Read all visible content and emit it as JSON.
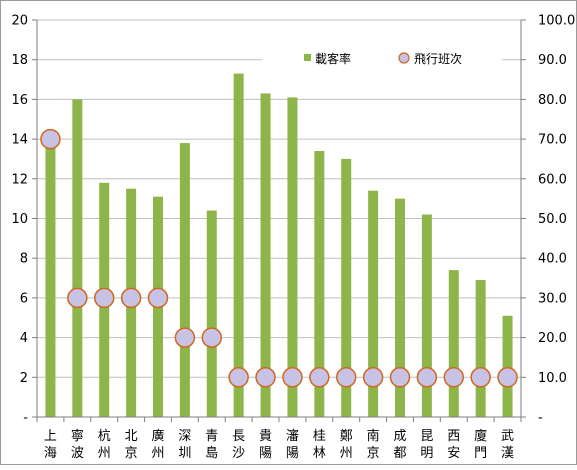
{
  "chart_data": {
    "type": "bar",
    "categories": [
      [
        "上",
        "海"
      ],
      [
        "寧",
        "波"
      ],
      [
        "杭",
        "州"
      ],
      [
        "北",
        "京"
      ],
      [
        "廣",
        "州"
      ],
      [
        "深",
        "圳"
      ],
      [
        "青",
        "島"
      ],
      [
        "長",
        "沙"
      ],
      [
        "貴",
        "陽"
      ],
      [
        "瀋",
        "陽"
      ],
      [
        "桂",
        "林"
      ],
      [
        "鄭",
        "州"
      ],
      [
        "南",
        "京"
      ],
      [
        "成",
        "都"
      ],
      [
        "昆",
        "明"
      ],
      [
        "西",
        "安"
      ],
      [
        "廈",
        "門"
      ],
      [
        "武",
        "漢"
      ]
    ],
    "series": [
      {
        "name": "載客率",
        "type": "bar",
        "axis": "left",
        "color": "#8db54a",
        "values": [
          13.8,
          16.0,
          11.8,
          11.5,
          11.1,
          13.8,
          10.4,
          17.3,
          16.3,
          16.1,
          13.4,
          13.0,
          11.4,
          11.0,
          10.2,
          7.4,
          6.9,
          5.1
        ]
      },
      {
        "name": "飛行班次",
        "type": "marker",
        "axis": "right",
        "color": "#c8c2e4",
        "edge_color": "#d0661f",
        "values": [
          70,
          30,
          30,
          30,
          30,
          20,
          20,
          10,
          10,
          10,
          10,
          10,
          10,
          10,
          10,
          10,
          10,
          10
        ]
      }
    ],
    "y_left": {
      "ylim": [
        0,
        20
      ],
      "ticks": [
        "-",
        "2",
        "4",
        "6",
        "8",
        "10",
        "12",
        "14",
        "16",
        "18",
        "20"
      ]
    },
    "y_right": {
      "ylim": [
        0,
        100
      ],
      "ticks": [
        "-",
        "10.0",
        "20.0",
        "30.0",
        "40.0",
        "50.0",
        "60.0",
        "70.0",
        "80.0",
        "90.0",
        "100.0"
      ]
    },
    "grid": "horizontal",
    "legend_position": "top-right"
  }
}
